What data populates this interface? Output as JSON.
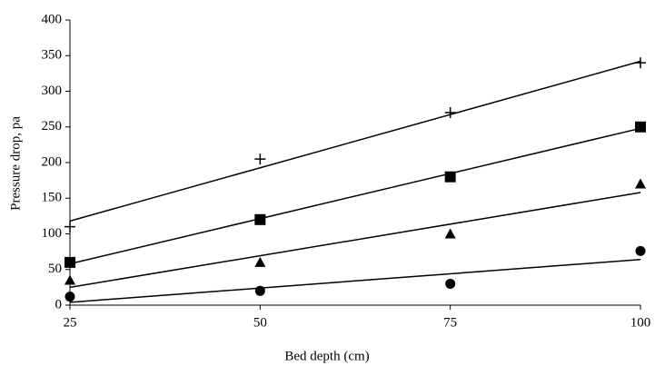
{
  "chart_data": {
    "type": "scatter",
    "x_label": "Bed depth (cm)",
    "y_label": "Pressure drop, pa",
    "x": [
      25,
      50,
      75,
      100
    ],
    "trend_x": [
      25,
      100
    ],
    "series": [
      {
        "marker": "plus",
        "color": "#000000",
        "values": [
          110,
          205,
          270,
          340
        ],
        "trend": [
          118,
          342
        ]
      },
      {
        "marker": "square",
        "color": "#000000",
        "values": [
          60,
          120,
          180,
          250
        ],
        "trend": [
          58,
          248
        ]
      },
      {
        "marker": "triangle",
        "color": "#000000",
        "values": [
          35,
          60,
          100,
          170
        ],
        "trend": [
          25,
          158
        ]
      },
      {
        "marker": "circle",
        "color": "#000000",
        "values": [
          12,
          20,
          30,
          76
        ],
        "trend": [
          4,
          64
        ]
      }
    ],
    "xlim": [
      25,
      100
    ],
    "xticks": [
      25,
      50,
      75,
      100
    ],
    "ylim": [
      0,
      400
    ],
    "yticks": [
      0,
      50,
      100,
      150,
      200,
      250,
      300,
      350,
      400
    ],
    "grid": false
  }
}
